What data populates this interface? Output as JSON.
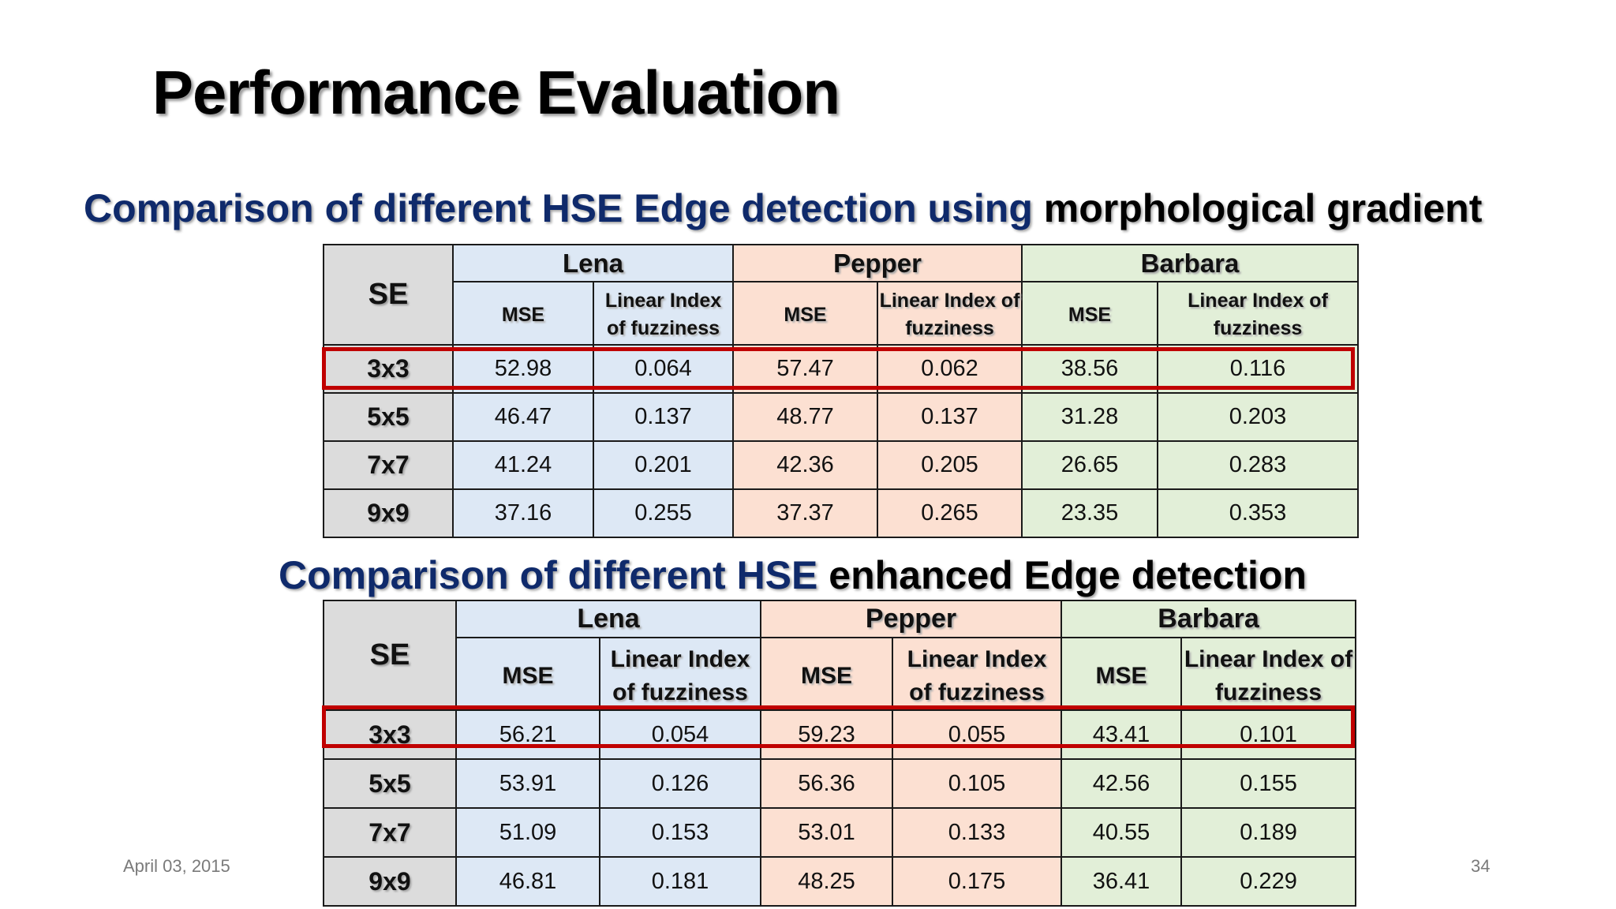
{
  "slide": {
    "title": "Performance Evaluation",
    "date": "April 03, 2015",
    "page_number": "34"
  },
  "section1": {
    "subtitle_blue": "Comparison of different HSE Edge detection using",
    "subtitle_black": "morphological gradient",
    "table": {
      "se_header": "SE",
      "groups": [
        "Lena",
        "Pepper",
        "Barbara"
      ],
      "subheaders": [
        "MSE",
        "Linear Index of fuzziness",
        "MSE",
        "Linear Index of fuzziness",
        "MSE",
        "Linear Index of fuzziness"
      ],
      "rows": [
        {
          "se": "3x3",
          "values": [
            "52.98",
            "0.064",
            "57.47",
            "0.062",
            "38.56",
            "0.116"
          ]
        },
        {
          "se": "5x5",
          "values": [
            "46.47",
            "0.137",
            "48.77",
            "0.137",
            "31.28",
            "0.203"
          ]
        },
        {
          "se": "7x7",
          "values": [
            "41.24",
            "0.201",
            "42.36",
            "0.205",
            "26.65",
            "0.283"
          ]
        },
        {
          "se": "9x9",
          "values": [
            "37.16",
            "0.255",
            "37.37",
            "0.265",
            "23.35",
            "0.353"
          ]
        }
      ]
    }
  },
  "section2": {
    "subtitle_blue": "Comparison of different HSE",
    "subtitle_black": "enhanced Edge detection",
    "table": {
      "se_header": "SE",
      "groups": [
        "Lena",
        "Pepper",
        "Barbara"
      ],
      "subheaders": [
        "MSE",
        "Linear Index of fuzziness",
        "MSE",
        "Linear Index of fuzziness",
        "MSE",
        "Linear Index of fuzziness"
      ],
      "rows": [
        {
          "se": "3x3",
          "values": [
            "56.21",
            "0.054",
            "59.23",
            "0.055",
            "43.41",
            "0.101"
          ]
        },
        {
          "se": "5x5",
          "values": [
            "53.91",
            "0.126",
            "56.36",
            "0.105",
            "42.56",
            "0.155"
          ]
        },
        {
          "se": "7x7",
          "values": [
            "51.09",
            "0.153",
            "53.01",
            "0.133",
            "40.55",
            "0.189"
          ]
        },
        {
          "se": "9x9",
          "values": [
            "46.81",
            "0.181",
            "48.25",
            "0.175",
            "36.41",
            "0.229"
          ]
        }
      ]
    }
  },
  "colors": {
    "title_blue": "#0f2a6b",
    "highlight_red": "#c00000",
    "se_column": "#dcdcdc",
    "lena": "#dde8f5",
    "pepper": "#fce0d2",
    "barbara": "#e2efd8"
  }
}
